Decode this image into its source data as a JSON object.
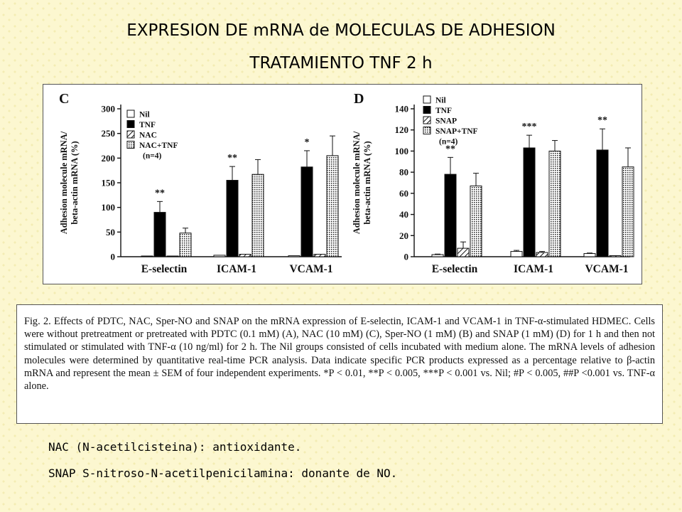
{
  "slide": {
    "title": "EXPRESION DE mRNA de MOLECULAS DE ADHESION",
    "subtitle": "TRATAMIENTO TNF 2 h",
    "notes": [
      "NAC (N-acetilcisteina): antioxidante.",
      "SNAP S-nitroso-N-acetilpenicilamina: donante de NO."
    ]
  },
  "caption": {
    "text": "Fig. 2. Effects of PDTC, NAC, Sper-NO and SNAP on the mRNA expression of E-selectin, ICAM-1 and VCAM-1 in TNF-α-stimulated HDMEC. Cells were without pretreatment or pretreated with PDTC (0.1 mM) (A), NAC (10 mM) (C), Sper-NO (1 mM) (B) and SNAP (1 mM) (D) for 1 h and then not stimulated or stimulated with TNF-α (10 ng/ml) for 2 h. The Nil groups consisted of cells incubated with medium alone. The mRNA levels of adhesion molecules were determined by quantitative real-time PCR analysis. Data indicate specific PCR products expressed as a percentage relative to β-actin mRNA and represent the mean ± SEM of four independent experiments. *P < 0.01, **P < 0.005, ***P < 0.001 vs. Nil; #P < 0.005, ##P <0.001 vs. TNF-α alone."
  },
  "chart_data": [
    {
      "type": "bar",
      "panel_label": "C",
      "ylabel": "Adhesion molecule mRNA/ beta-actin mRNA (%)",
      "ylim": [
        0,
        300
      ],
      "yticks": [
        0,
        50,
        100,
        150,
        200,
        250,
        300
      ],
      "categories": [
        "E-selectin",
        "ICAM-1",
        "VCAM-1"
      ],
      "legend": {
        "entries": [
          "Nil",
          "TNF",
          "NAC",
          "NAC+TNF"
        ],
        "note": "(n=4)",
        "placement": "top-left"
      },
      "series": [
        {
          "name": "Nil",
          "values": [
            1,
            3,
            2
          ],
          "errors": [
            0,
            0,
            0
          ]
        },
        {
          "name": "TNF",
          "values": [
            90,
            155,
            182
          ],
          "errors": [
            22,
            28,
            33
          ]
        },
        {
          "name": "NAC",
          "values": [
            1,
            5,
            5
          ],
          "errors": [
            0,
            0,
            0
          ]
        },
        {
          "name": "NAC+TNF",
          "values": [
            48,
            167,
            205
          ],
          "errors": [
            10,
            30,
            40
          ]
        }
      ],
      "annotations": [
        {
          "category": "E-selectin",
          "series": "TNF",
          "text": "**"
        },
        {
          "category": "ICAM-1",
          "series": "TNF",
          "text": "**"
        },
        {
          "category": "VCAM-1",
          "series": "TNF",
          "text": "*"
        }
      ]
    },
    {
      "type": "bar",
      "panel_label": "D",
      "ylabel": "Adhesion molecule mRNA/ beta-actin mRNA (%)",
      "ylim": [
        0,
        140
      ],
      "yticks": [
        0,
        20,
        40,
        60,
        80,
        100,
        120,
        140
      ],
      "categories": [
        "E-selectin",
        "ICAM-1",
        "VCAM-1"
      ],
      "legend": {
        "entries": [
          "Nil",
          "TNF",
          "SNAP",
          "SNAP+TNF"
        ],
        "note": "(n=4)",
        "placement": "top-left"
      },
      "series": [
        {
          "name": "Nil",
          "values": [
            2,
            5,
            3
          ],
          "errors": [
            0.5,
            1,
            0.5
          ]
        },
        {
          "name": "TNF",
          "values": [
            78,
            103,
            101
          ],
          "errors": [
            16,
            12,
            20
          ]
        },
        {
          "name": "SNAP",
          "values": [
            8,
            4,
            1
          ],
          "errors": [
            6,
            1,
            0
          ]
        },
        {
          "name": "SNAP+TNF",
          "values": [
            67,
            100,
            85
          ],
          "errors": [
            12,
            10,
            18
          ]
        }
      ],
      "annotations": [
        {
          "category": "E-selectin",
          "series": "TNF",
          "text": "**"
        },
        {
          "category": "ICAM-1",
          "series": "TNF",
          "text": "***"
        },
        {
          "category": "VCAM-1",
          "series": "TNF",
          "text": "**"
        }
      ]
    }
  ]
}
